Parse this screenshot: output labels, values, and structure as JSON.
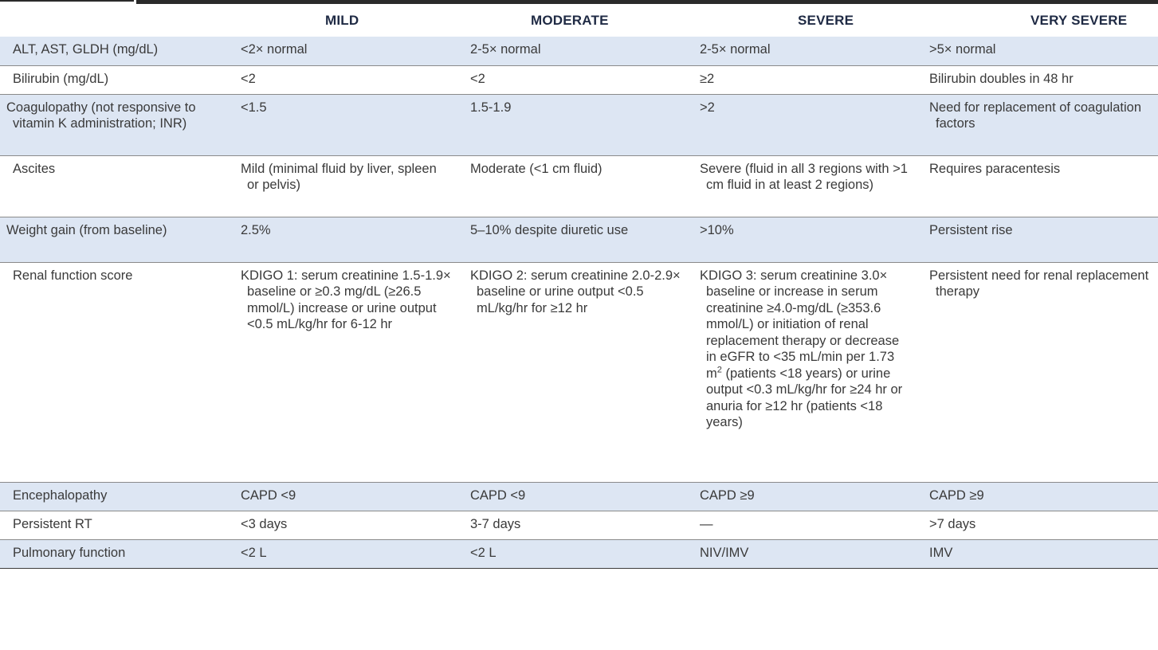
{
  "headers": [
    "",
    "MILD",
    "MODERATE",
    "SEVERE",
    "VERY SEVERE"
  ],
  "rows": [
    {
      "label": "ALT, AST, GLDH (mg/dL)",
      "cells": [
        "<2× normal",
        "2-5× normal",
        "2-5× normal",
        ">5× normal"
      ]
    },
    {
      "label": "Bilirubin (mg/dL)",
      "cells": [
        "<2",
        "<2",
        "≥2",
        "Bilirubin doubles in 48 hr"
      ]
    },
    {
      "label": "Coagulopathy (not responsive to vitamin K administration; INR)",
      "cells": [
        "<1.5",
        "1.5-1.9",
        ">2",
        "Need for replacement of coagulation factors"
      ]
    },
    {
      "label": "Ascites",
      "cells": [
        "Mild (minimal fluid by liver, spleen or pelvis)",
        "Moderate (<1 cm fluid)",
        "Severe (fluid in all 3 regions with >1 cm fluid in at least 2 regions)",
        "Requires paracentesis"
      ]
    },
    {
      "label": "Weight gain (from baseline)",
      "cells": [
        "2.5%",
        "5–10% despite diuretic use",
        ">10%",
        "Persistent rise"
      ]
    },
    {
      "label": "Renal function score",
      "cells": [
        "KDIGO 1: serum creatinine 1.5-1.9× baseline or ≥0.3 mg/dL (≥26.5 mmol/L) increase or urine output <0.5 mL/kg/hr for 6-12 hr",
        "KDIGO 2: serum creatinine 2.0-2.9× baseline or urine output <0.5 mL/kg/hr for ≥12 hr",
        "KDIGO 3: serum creatinine 3.0× baseline or increase in serum creatinine ≥4.0-mg/dL (≥353.6 mmol/L) or initiation of renal replacement therapy or decrease in eGFR to <35 mL/min per 1.73 m",
        "Persistent need for renal replacement therapy"
      ],
      "sup": "2",
      "tail": "(patients <18 years) or urine output <0.3 mL/kg/hr for ≥24 hr or anuria for ≥12 hr (patients <18 years)"
    },
    {
      "label": "Encephalopathy",
      "cells": [
        "CAPD <9",
        "CAPD <9",
        "CAPD ≥9",
        "CAPD ≥9"
      ]
    },
    {
      "label": "Persistent RT",
      "cells": [
        "<3 days",
        "3-7 days",
        "—",
        ">7 days"
      ]
    },
    {
      "label": "Pulmonary function",
      "cells": [
        "<2 L",
        "<2 L",
        "NIV/IMV",
        "IMV"
      ]
    }
  ]
}
